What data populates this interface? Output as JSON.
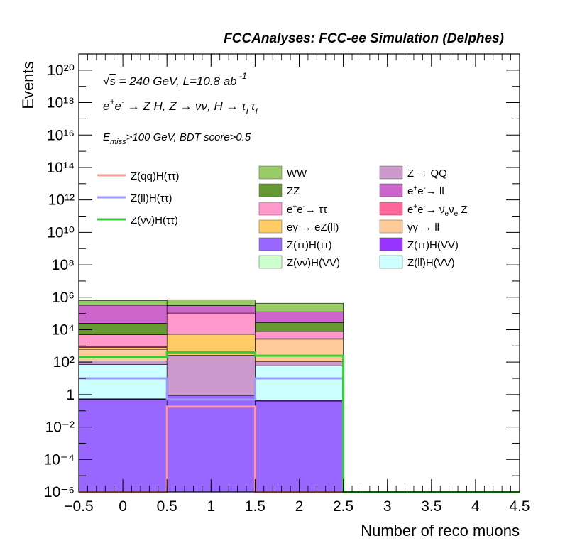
{
  "header": {
    "title": "FCCAnalyses: FCC-ee Simulation (Delphes)"
  },
  "annotations": {
    "line1": "√s = 240 GeV, L=10.8 ab⁻¹",
    "line2": "e⁺e⁻ → Z H, Z → νν, H → τ_L τ_L",
    "line3": "E_miss>100 GeV, BDT score>0.5"
  },
  "chart_data": {
    "type": "bar",
    "subtype": "stacked histogram with overlaid signal lines",
    "xlabel": "Number of reco muons",
    "ylabel": "Events",
    "xlim": [
      -0.5,
      4.5
    ],
    "ylim": [
      1e-06,
      1e+21
    ],
    "yscale": "log",
    "bin_edges": [
      -0.5,
      0.5,
      1.5,
      2.5,
      3.5,
      4.5
    ],
    "x_ticks": [
      "−0.5",
      "0",
      "0.5",
      "1",
      "1.5",
      "2",
      "2.5",
      "3",
      "3.5",
      "4",
      "4.5"
    ],
    "y_ticks": [
      "10⁻⁶",
      "10⁻⁴",
      "10⁻²",
      "1",
      "10²",
      "10⁴",
      "10⁶",
      "10⁸",
      "10¹⁰",
      "10¹²",
      "10¹⁴",
      "10¹⁶",
      "10¹⁸",
      "10²⁰"
    ],
    "stack": [
      {
        "name": "Z(ττ)H(ττ)",
        "color": "#9966ff",
        "values": [
          0.5,
          0.9,
          0.4,
          0,
          0
        ]
      },
      {
        "name": "Z(ττ)H(VV)",
        "color": "#9933ff",
        "values": [
          0.05,
          0.001,
          0.05,
          0,
          0
        ]
      },
      {
        "name": "Z(νν)H(VV)",
        "color": "#ccffcc",
        "values": [
          0.001,
          0.001,
          0.001,
          0,
          0
        ]
      },
      {
        "name": "Z(ll)H(VV)",
        "color": "#ccffff",
        "values": [
          70,
          0.01,
          60,
          0,
          0
        ]
      },
      {
        "name": "Z → QQ",
        "color": "#cc99cc",
        "values": [
          50,
          250,
          50,
          0,
          0
        ]
      },
      {
        "name": "γγ → ll",
        "color": "#ffcc99",
        "values": [
          500,
          10,
          2500,
          0,
          0
        ]
      },
      {
        "name": "eγ → eZ(ll)",
        "color": "#ffcc66",
        "values": [
          200,
          5000,
          100,
          0,
          0
        ]
      },
      {
        "name": "e⁺e⁻ → ν_e ν_e Z",
        "color": "#ff6699",
        "values": [
          100,
          10,
          100,
          0,
          0
        ]
      },
      {
        "name": "e⁺e⁻ → ττ",
        "color": "#ff99cc",
        "values": [
          4000,
          100000,
          5000,
          0,
          0
        ]
      },
      {
        "name": "ZZ",
        "color": "#669933",
        "values": [
          20000,
          20,
          20000,
          0,
          0
        ]
      },
      {
        "name": "e⁺e⁻ → ll",
        "color": "#cc66cc",
        "values": [
          300000,
          200000,
          100000,
          0,
          0
        ]
      },
      {
        "name": "WW",
        "color": "#99cc66",
        "values": [
          300000,
          400000,
          300000,
          0,
          0
        ]
      }
    ],
    "lines": [
      {
        "name": "Z(qq)H(ττ)",
        "color": "#ff9999",
        "values": [
          1e-06,
          0.18,
          1e-06,
          1e-06,
          1e-06
        ]
      },
      {
        "name": "Z(ll)H(ττ)",
        "color": "#9999ff",
        "values": [
          10,
          0.5,
          10,
          1e-06,
          1e-06
        ]
      },
      {
        "name": "Z(νν)H(ττ)",
        "color": "#33cc33",
        "values": [
          200,
          400,
          250,
          1e-06,
          1e-06
        ]
      }
    ],
    "legend_stack_order": [
      "WW",
      "Z → QQ",
      "ZZ",
      "e⁺e⁻ → ll",
      "e⁺e⁻ → ττ",
      "e⁺e⁻ → ν_e ν_e Z",
      "eγ → eZ(ll)",
      "γγ → ll",
      "Z(ττ)H(ττ)",
      "Z(ττ)H(VV)",
      "Z(νν)H(VV)",
      "Z(ll)H(VV)"
    ]
  }
}
